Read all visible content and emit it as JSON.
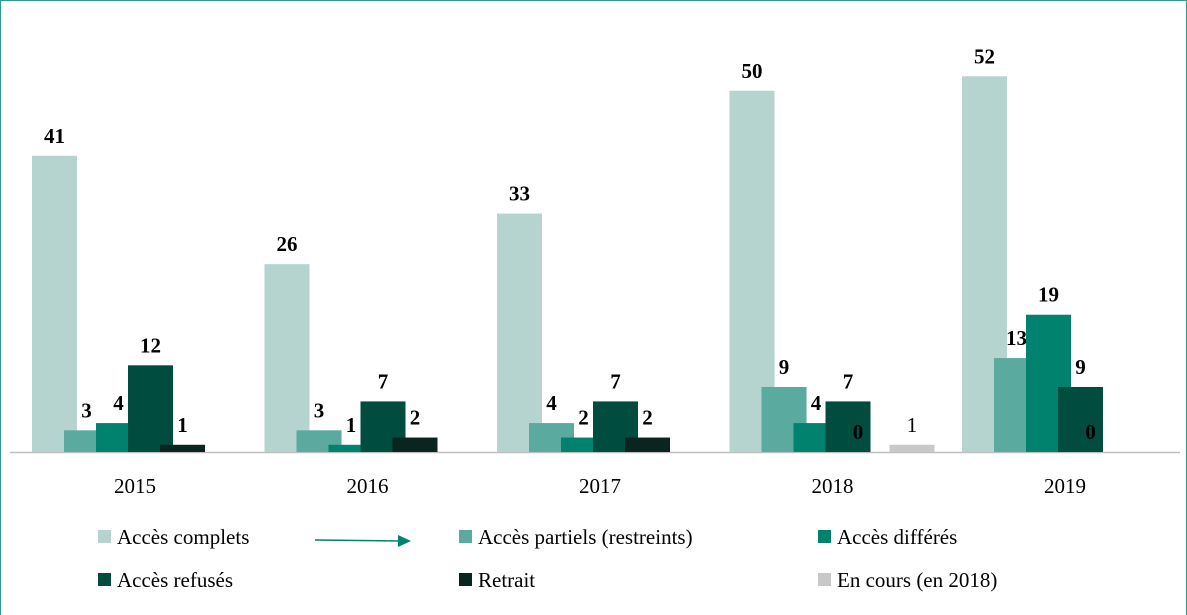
{
  "chart_data": {
    "type": "bar",
    "categories": [
      "2015",
      "2016",
      "2017",
      "2018",
      "2019"
    ],
    "series": [
      {
        "name": "Accès complets",
        "color": "#b5d3cf",
        "values": [
          41,
          26,
          33,
          50,
          52
        ]
      },
      {
        "name": "Accès partiels (restreints)",
        "color": "#5aaa9f",
        "values": [
          3,
          3,
          4,
          9,
          13
        ]
      },
      {
        "name": "Accès différés",
        "color": "#00826f",
        "values": [
          4,
          1,
          2,
          4,
          19
        ]
      },
      {
        "name": "Accès refusés",
        "color": "#004d40",
        "values": [
          12,
          7,
          7,
          7,
          9
        ]
      },
      {
        "name": "Retrait",
        "color": "#0a2420",
        "values": [
          1,
          2,
          2,
          0,
          0
        ]
      },
      {
        "name": "En cours (en 2018)",
        "color": "#c8c8c8",
        "values": [
          null,
          null,
          null,
          1,
          null
        ]
      }
    ]
  }
}
